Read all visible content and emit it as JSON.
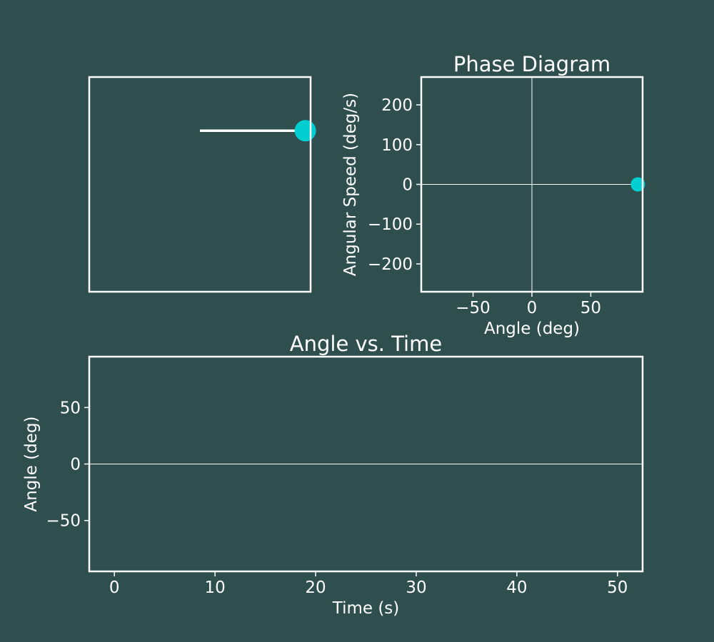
{
  "colors": {
    "background": "#2f4f4f",
    "foreground": "#ffffff",
    "accent": "#00ced1"
  },
  "chart_data": [
    {
      "id": "pendulum",
      "type": "scatter",
      "title": "",
      "xlim": [
        -1.05,
        1.05
      ],
      "ylim": [
        -1.5,
        0.5
      ],
      "ticks_visible": false,
      "rod": {
        "pivot": [
          0,
          0
        ],
        "bob": [
          1,
          0
        ]
      }
    },
    {
      "id": "phase",
      "type": "scatter",
      "title": "Phase Diagram",
      "xlabel": "Angle (deg)",
      "ylabel": "Angular Speed (deg/s)",
      "xlim": [
        -94,
        94
      ],
      "ylim": [
        -270,
        270
      ],
      "xticks": [
        -50,
        0,
        50
      ],
      "yticks": [
        -200,
        -100,
        0,
        100,
        200
      ],
      "tick_labels_x": [
        "−50",
        "0",
        "50"
      ],
      "tick_labels_y": [
        "−200",
        "−100",
        "0",
        "100",
        "200"
      ],
      "reference_lines": {
        "x": 0,
        "y": 0
      },
      "points": [
        {
          "x": 90,
          "y": 0
        }
      ]
    },
    {
      "id": "angle-time",
      "type": "line",
      "title": "Angle vs. Time",
      "xlabel": "Time (s)",
      "ylabel": "Angle (deg)",
      "xlim": [
        -2.5,
        52.5
      ],
      "ylim": [
        -95,
        95
      ],
      "xticks": [
        0,
        10,
        20,
        30,
        40,
        50
      ],
      "yticks": [
        -50,
        0,
        50
      ],
      "tick_labels_x": [
        "0",
        "10",
        "20",
        "30",
        "40",
        "50"
      ],
      "tick_labels_y": [
        "−50",
        "0",
        "50"
      ],
      "reference_lines": {
        "y": 0
      },
      "series": [
        {
          "x": [],
          "y": []
        }
      ]
    }
  ]
}
